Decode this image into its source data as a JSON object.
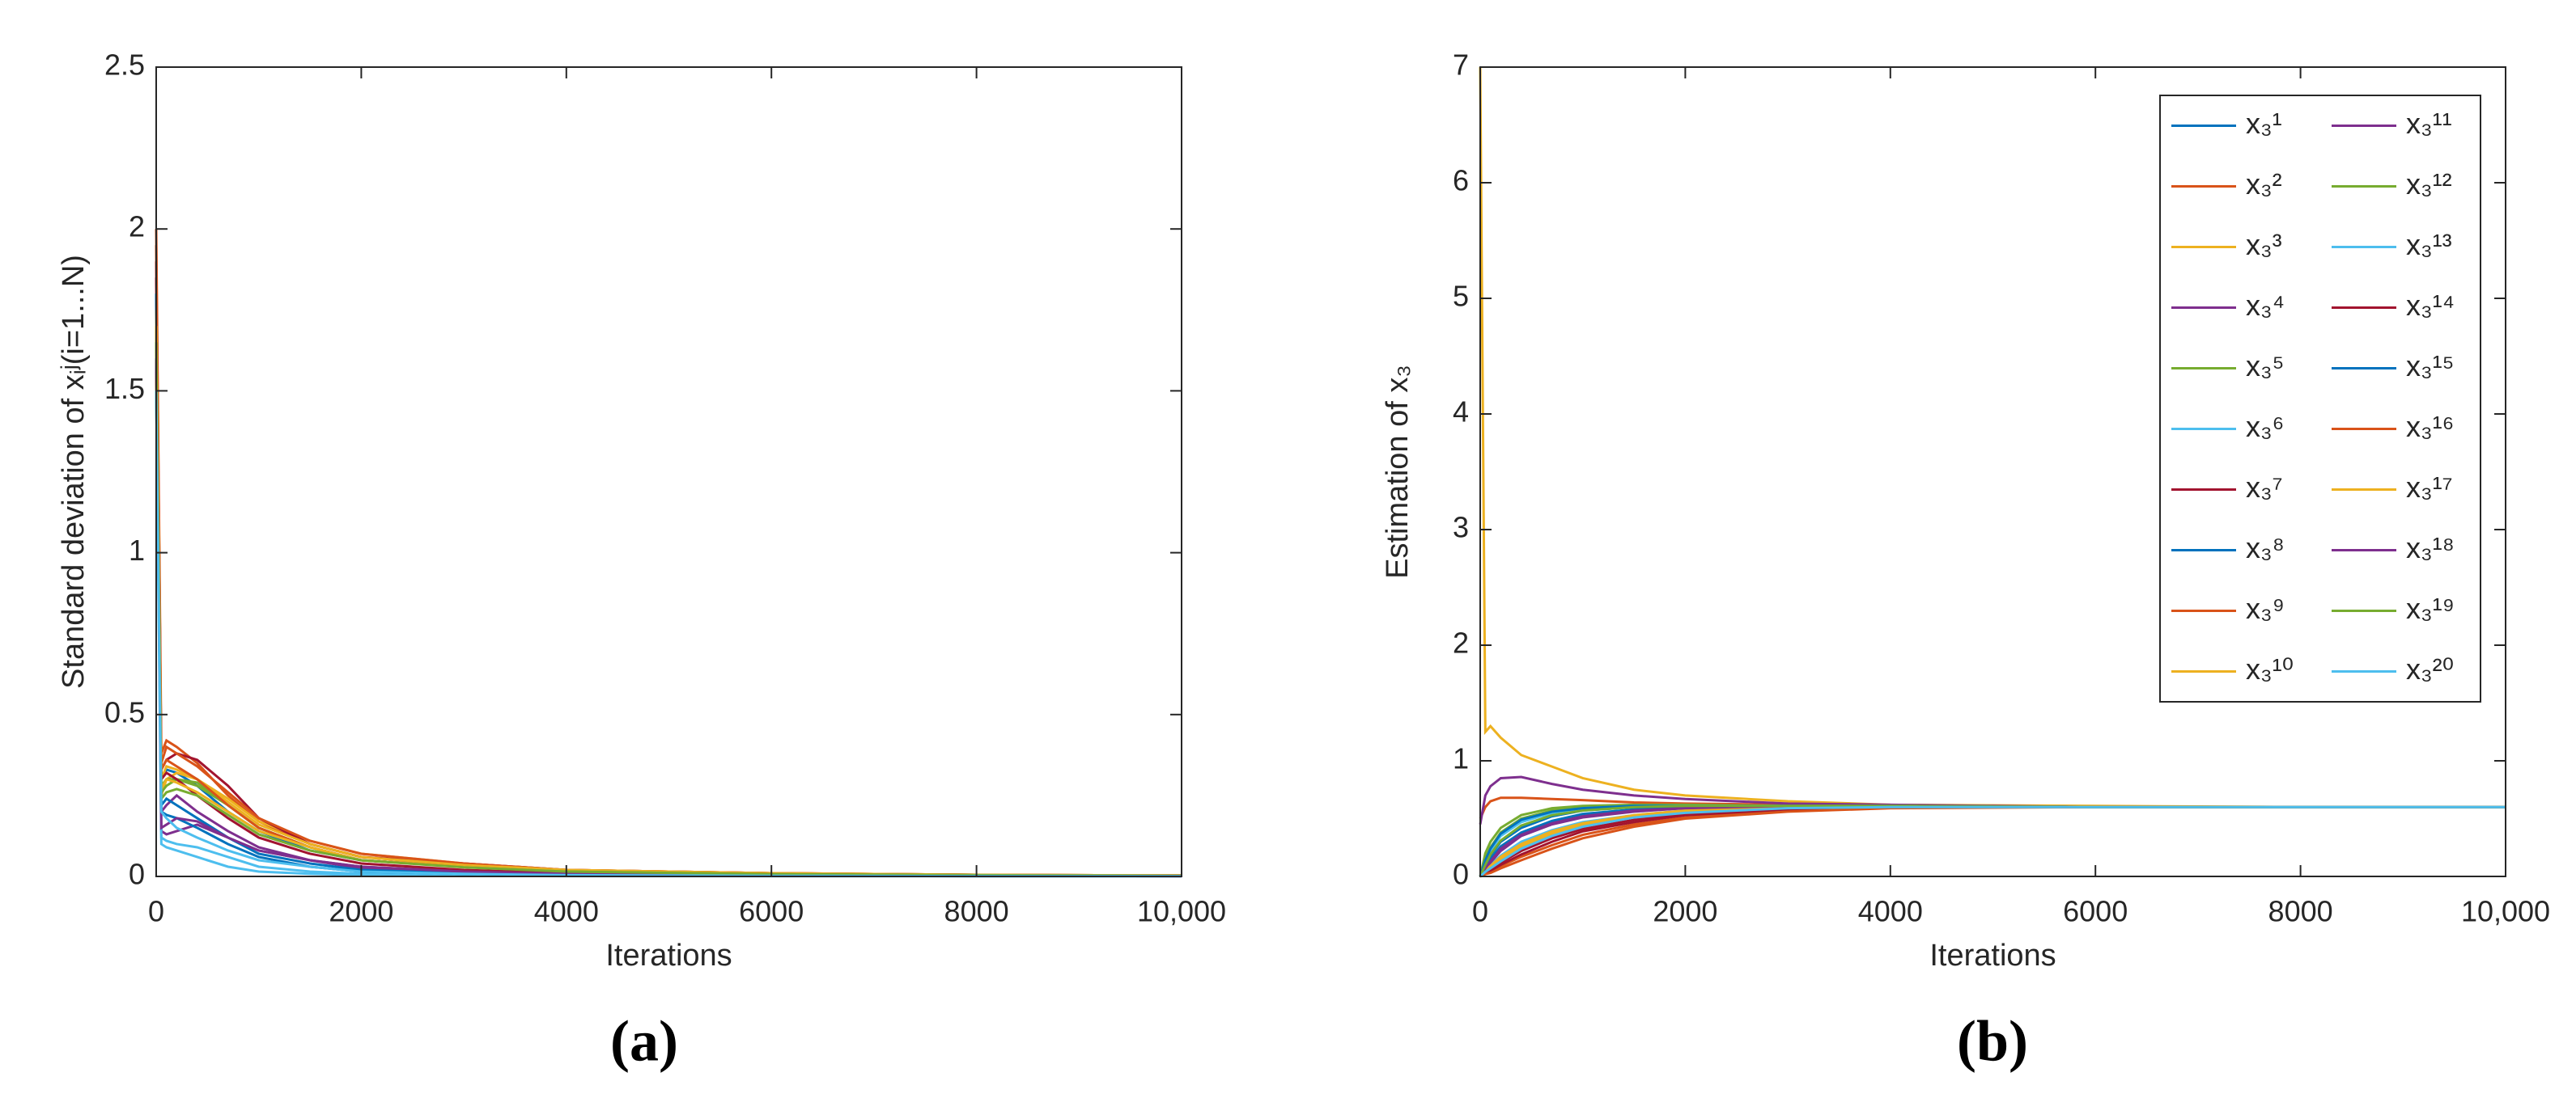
{
  "chart_data": [
    {
      "type": "line",
      "caption": "(a)",
      "xlabel": "Iterations",
      "ylabel": "Standard deviation of xᵢʲ(i=1...N)",
      "x": [
        0,
        50,
        100,
        200,
        400,
        700,
        1000,
        1500,
        2000,
        3000,
        4000,
        6000,
        8000,
        10000
      ],
      "xlim": [
        0,
        10000
      ],
      "xticks": [
        0,
        2000,
        4000,
        6000,
        8000,
        {
          "value": 10000,
          "label": "10,000"
        }
      ],
      "ylim": [
        0,
        2.5
      ],
      "yticks": [
        0,
        0.5,
        1,
        1.5,
        2,
        2.5
      ],
      "series": [
        {
          "color": "#0072BD",
          "values": [
            1.8,
            0.3,
            0.33,
            0.32,
            0.28,
            0.2,
            0.14,
            0.08,
            0.05,
            0.03,
            0.015,
            0.008,
            0.004,
            0.002
          ]
        },
        {
          "color": "#D95319",
          "values": [
            2.0,
            0.38,
            0.42,
            0.4,
            0.35,
            0.25,
            0.17,
            0.1,
            0.06,
            0.035,
            0.02,
            0.01,
            0.005,
            0.003
          ]
        },
        {
          "color": "#EDB120",
          "values": [
            1.75,
            0.25,
            0.3,
            0.32,
            0.3,
            0.24,
            0.17,
            0.11,
            0.07,
            0.04,
            0.02,
            0.01,
            0.005,
            0.003
          ]
        },
        {
          "color": "#7E2F8E",
          "values": [
            1.6,
            0.2,
            0.22,
            0.25,
            0.2,
            0.14,
            0.09,
            0.05,
            0.025,
            0.01,
            0.006,
            0.003,
            0.002,
            0.001
          ]
        },
        {
          "color": "#77AC30",
          "values": [
            1.55,
            0.28,
            0.3,
            0.3,
            0.28,
            0.22,
            0.15,
            0.09,
            0.05,
            0.03,
            0.015,
            0.008,
            0.004,
            0.002
          ]
        },
        {
          "color": "#4DBEEE",
          "values": [
            1.5,
            0.12,
            0.11,
            0.1,
            0.09,
            0.06,
            0.03,
            0.015,
            0.008,
            0.004,
            0.002,
            0.001,
            0.001,
            0.001
          ]
        },
        {
          "color": "#A2142F",
          "values": [
            1.9,
            0.33,
            0.36,
            0.38,
            0.36,
            0.28,
            0.18,
            0.1,
            0.06,
            0.04,
            0.02,
            0.01,
            0.005,
            0.003
          ]
        },
        {
          "color": "#0072BD",
          "values": [
            1.7,
            0.22,
            0.24,
            0.22,
            0.18,
            0.12,
            0.07,
            0.04,
            0.02,
            0.01,
            0.005,
            0.003,
            0.002,
            0.001
          ]
        },
        {
          "color": "#D95319",
          "values": [
            1.65,
            0.35,
            0.4,
            0.38,
            0.34,
            0.26,
            0.18,
            0.11,
            0.07,
            0.04,
            0.02,
            0.01,
            0.005,
            0.003
          ]
        },
        {
          "color": "#EDB120",
          "values": [
            1.55,
            0.3,
            0.34,
            0.33,
            0.3,
            0.23,
            0.16,
            0.1,
            0.06,
            0.035,
            0.02,
            0.01,
            0.005,
            0.003
          ]
        },
        {
          "color": "#7E2F8E",
          "values": [
            1.6,
            0.14,
            0.13,
            0.14,
            0.16,
            0.12,
            0.08,
            0.05,
            0.03,
            0.015,
            0.008,
            0.004,
            0.002,
            0.001
          ]
        },
        {
          "color": "#77AC30",
          "values": [
            1.7,
            0.26,
            0.28,
            0.3,
            0.29,
            0.22,
            0.15,
            0.09,
            0.05,
            0.03,
            0.016,
            0.008,
            0.004,
            0.002
          ]
        },
        {
          "color": "#4DBEEE",
          "values": [
            1.5,
            0.1,
            0.09,
            0.08,
            0.06,
            0.03,
            0.015,
            0.008,
            0.004,
            0.002,
            0.001,
            0.001,
            0.001,
            0.001
          ]
        },
        {
          "color": "#A2142F",
          "values": [
            1.85,
            0.3,
            0.32,
            0.3,
            0.25,
            0.18,
            0.12,
            0.07,
            0.04,
            0.02,
            0.01,
            0.005,
            0.003,
            0.002
          ]
        },
        {
          "color": "#0072BD",
          "values": [
            1.8,
            0.2,
            0.19,
            0.18,
            0.15,
            0.1,
            0.06,
            0.03,
            0.015,
            0.008,
            0.004,
            0.002,
            0.001,
            0.001
          ]
        },
        {
          "color": "#D95319",
          "values": [
            1.95,
            0.33,
            0.36,
            0.34,
            0.3,
            0.22,
            0.15,
            0.09,
            0.05,
            0.03,
            0.015,
            0.008,
            0.004,
            0.002
          ]
        },
        {
          "color": "#EDB120",
          "values": [
            1.7,
            0.27,
            0.3,
            0.29,
            0.26,
            0.2,
            0.14,
            0.09,
            0.05,
            0.03,
            0.016,
            0.008,
            0.004,
            0.002
          ]
        },
        {
          "color": "#7E2F8E",
          "values": [
            1.6,
            0.15,
            0.16,
            0.18,
            0.17,
            0.12,
            0.08,
            0.05,
            0.03,
            0.015,
            0.008,
            0.004,
            0.002,
            0.001
          ]
        },
        {
          "color": "#77AC30",
          "values": [
            1.65,
            0.24,
            0.26,
            0.27,
            0.25,
            0.19,
            0.13,
            0.08,
            0.05,
            0.028,
            0.015,
            0.007,
            0.004,
            0.002
          ]
        },
        {
          "color": "#4DBEEE",
          "values": [
            1.5,
            0.2,
            0.18,
            0.15,
            0.12,
            0.08,
            0.05,
            0.03,
            0.015,
            0.008,
            0.004,
            0.002,
            0.001,
            0.001
          ]
        }
      ]
    },
    {
      "type": "line",
      "caption": "(b)",
      "xlabel": "Iterations",
      "ylabel": "Estimation of x₃",
      "x": [
        0,
        50,
        100,
        200,
        400,
        700,
        1000,
        1500,
        2000,
        3000,
        4000,
        6000,
        8000,
        10000
      ],
      "xlim": [
        0,
        10000
      ],
      "xticks": [
        0,
        2000,
        4000,
        6000,
        8000,
        {
          "value": 10000,
          "label": "10,000"
        }
      ],
      "ylim": [
        0,
        7
      ],
      "yticks": [
        0,
        1,
        2,
        3,
        4,
        5,
        6,
        7
      ],
      "legend": "upper right",
      "legend_columns": 2,
      "series": [
        {
          "name": "x₃¹",
          "color": "#0072BD",
          "values": [
            0,
            0.1,
            0.18,
            0.3,
            0.42,
            0.52,
            0.57,
            0.6,
            0.61,
            0.61,
            0.61,
            0.6,
            0.6,
            0.6
          ]
        },
        {
          "name": "x₃²",
          "color": "#D95319",
          "values": [
            0.5,
            0.6,
            0.65,
            0.68,
            0.68,
            0.67,
            0.66,
            0.64,
            0.63,
            0.62,
            0.61,
            0.6,
            0.6,
            0.6
          ]
        },
        {
          "name": "x₃³",
          "color": "#EDB120",
          "values": [
            7,
            1.25,
            1.3,
            1.2,
            1.05,
            0.95,
            0.85,
            0.75,
            0.7,
            0.65,
            0.62,
            0.61,
            0.6,
            0.6
          ]
        },
        {
          "name": "x₃⁴",
          "color": "#7E2F8E",
          "values": [
            0.45,
            0.7,
            0.78,
            0.85,
            0.86,
            0.8,
            0.75,
            0.7,
            0.67,
            0.63,
            0.62,
            0.6,
            0.6,
            0.6
          ]
        },
        {
          "name": "x₃⁵",
          "color": "#77AC30",
          "values": [
            0,
            0.15,
            0.25,
            0.38,
            0.5,
            0.57,
            0.6,
            0.61,
            0.61,
            0.61,
            0.61,
            0.6,
            0.6,
            0.6
          ]
        },
        {
          "name": "x₃⁶",
          "color": "#4DBEEE",
          "values": [
            0,
            0.05,
            0.1,
            0.18,
            0.3,
            0.4,
            0.47,
            0.53,
            0.57,
            0.6,
            0.61,
            0.6,
            0.6,
            0.6
          ]
        },
        {
          "name": "x₃⁷",
          "color": "#A2142F",
          "values": [
            0,
            0.03,
            0.06,
            0.12,
            0.22,
            0.33,
            0.41,
            0.49,
            0.54,
            0.59,
            0.6,
            0.6,
            0.6,
            0.6
          ]
        },
        {
          "name": "x₃⁸",
          "color": "#0072BD",
          "values": [
            0,
            0.08,
            0.15,
            0.26,
            0.38,
            0.48,
            0.54,
            0.58,
            0.6,
            0.61,
            0.61,
            0.6,
            0.6,
            0.6
          ]
        },
        {
          "name": "x₃⁹",
          "color": "#D95319",
          "values": [
            0,
            0.02,
            0.04,
            0.09,
            0.17,
            0.27,
            0.36,
            0.45,
            0.51,
            0.57,
            0.6,
            0.6,
            0.6,
            0.6
          ]
        },
        {
          "name": "x₃¹⁰",
          "color": "#EDB120",
          "values": [
            0,
            0.04,
            0.08,
            0.15,
            0.26,
            0.37,
            0.45,
            0.52,
            0.56,
            0.6,
            0.61,
            0.6,
            0.6,
            0.6
          ]
        },
        {
          "name": "x₃¹¹",
          "color": "#7E2F8E",
          "values": [
            0,
            0.06,
            0.12,
            0.22,
            0.35,
            0.45,
            0.51,
            0.56,
            0.59,
            0.61,
            0.61,
            0.6,
            0.6,
            0.6
          ]
        },
        {
          "name": "x₃¹²",
          "color": "#77AC30",
          "values": [
            0,
            0.2,
            0.3,
            0.42,
            0.53,
            0.59,
            0.61,
            0.62,
            0.62,
            0.61,
            0.61,
            0.6,
            0.6,
            0.6
          ]
        },
        {
          "name": "x₃¹³",
          "color": "#4DBEEE",
          "values": [
            0,
            0.12,
            0.22,
            0.35,
            0.47,
            0.55,
            0.59,
            0.61,
            0.61,
            0.61,
            0.61,
            0.6,
            0.6,
            0.6
          ]
        },
        {
          "name": "x₃¹⁴",
          "color": "#A2142F",
          "values": [
            0,
            0.03,
            0.05,
            0.1,
            0.19,
            0.3,
            0.39,
            0.47,
            0.53,
            0.58,
            0.6,
            0.6,
            0.6,
            0.6
          ]
        },
        {
          "name": "x₃¹⁵",
          "color": "#0072BD",
          "values": [
            0,
            0.14,
            0.24,
            0.37,
            0.49,
            0.56,
            0.59,
            0.61,
            0.61,
            0.61,
            0.61,
            0.6,
            0.6,
            0.6
          ]
        },
        {
          "name": "x₃¹⁶",
          "color": "#D95319",
          "values": [
            0,
            0.02,
            0.03,
            0.07,
            0.14,
            0.24,
            0.33,
            0.43,
            0.5,
            0.56,
            0.59,
            0.6,
            0.6,
            0.6
          ]
        },
        {
          "name": "x₃¹⁷",
          "color": "#EDB120",
          "values": [
            0,
            0.05,
            0.09,
            0.17,
            0.28,
            0.39,
            0.46,
            0.53,
            0.57,
            0.6,
            0.61,
            0.6,
            0.6,
            0.6
          ]
        },
        {
          "name": "x₃¹⁸",
          "color": "#7E2F8E",
          "values": [
            0,
            0.07,
            0.13,
            0.24,
            0.36,
            0.46,
            0.52,
            0.57,
            0.59,
            0.61,
            0.61,
            0.6,
            0.6,
            0.6
          ]
        },
        {
          "name": "x₃¹⁹",
          "color": "#77AC30",
          "values": [
            0,
            0.1,
            0.19,
            0.31,
            0.44,
            0.53,
            0.57,
            0.6,
            0.61,
            0.61,
            0.61,
            0.6,
            0.6,
            0.6
          ]
        },
        {
          "name": "x₃²⁰",
          "color": "#4DBEEE",
          "values": [
            0,
            0.04,
            0.07,
            0.13,
            0.24,
            0.35,
            0.43,
            0.51,
            0.55,
            0.59,
            0.6,
            0.6,
            0.6,
            0.6
          ]
        }
      ]
    }
  ]
}
